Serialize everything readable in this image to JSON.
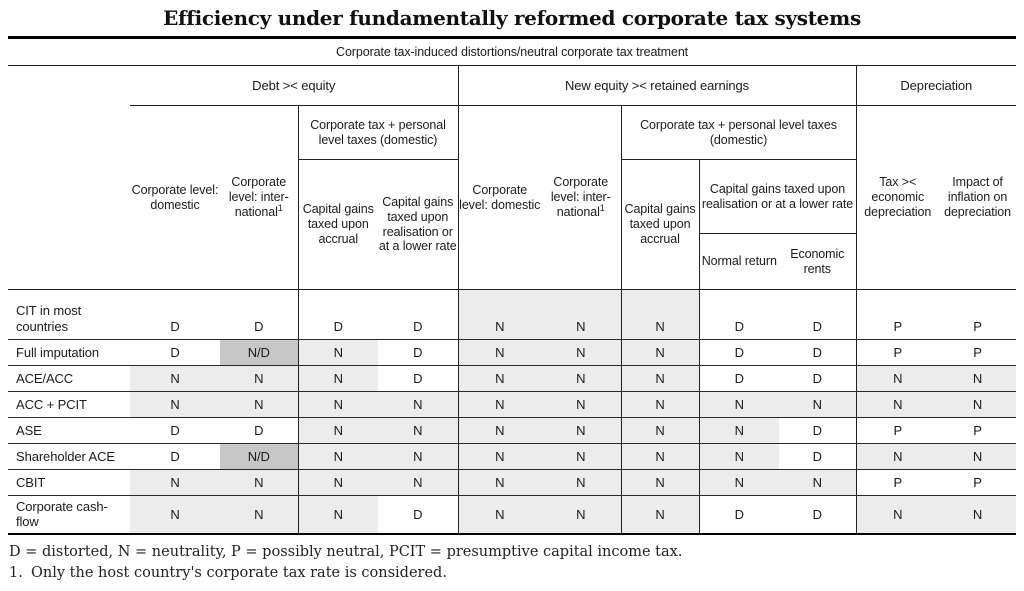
{
  "title": "Efficiency under fundamentally reformed corporate tax systems",
  "table": {
    "span_header": "Corporate tax-induced distortions/neutral corporate tax treatment",
    "columns": {
      "debt": {
        "group": "Debt >< equity",
        "corp_domestic": "Corporate level: domestic",
        "corp_international": "Corporate level: inter-national",
        "corp_international_sup": "1",
        "personal_group": "Corporate tax + personal level taxes (domestic)",
        "cg_accrual": "Capital gains taxed upon accrual",
        "cg_realisation": "Capital gains taxed upon realisation or at a lower rate"
      },
      "new_equity": {
        "group": "New equity >< retained earnings",
        "corp_domestic": "Corporate level: domestic",
        "corp_international": "Corporate level: inter-national",
        "corp_international_sup": "1",
        "personal_group": "Corporate tax + personal level taxes (domestic)",
        "cg_accrual": "Capital gains taxed upon accrual",
        "cg_realisation": "Capital gains taxed upon realisation or at a lower rate",
        "normal_return": "Normal return",
        "economic_rents": "Economic rents"
      },
      "depreciation": {
        "group": "Depreciation",
        "tax_vs_economic": "Tax >< economic depreciation",
        "inflation": "Impact of inflation on depreciation"
      }
    },
    "rows": [
      {
        "label": "CIT in most countries",
        "values": [
          "D",
          "D",
          "D",
          "D",
          "N",
          "N",
          "N",
          "D",
          "D",
          "P",
          "P"
        ],
        "shade": [
          0,
          0,
          0,
          0,
          1,
          1,
          1,
          0,
          0,
          0,
          0
        ]
      },
      {
        "label": "Full imputation",
        "values": [
          "D",
          "N/D",
          "N",
          "D",
          "N",
          "N",
          "N",
          "D",
          "D",
          "P",
          "P"
        ],
        "shade": [
          0,
          2,
          1,
          0,
          1,
          1,
          1,
          0,
          0,
          0,
          0
        ]
      },
      {
        "label": "ACE/ACC",
        "values": [
          "N",
          "N",
          "N",
          "D",
          "N",
          "N",
          "N",
          "D",
          "D",
          "N",
          "N"
        ],
        "shade": [
          1,
          1,
          1,
          0,
          1,
          1,
          1,
          0,
          0,
          1,
          1
        ]
      },
      {
        "label": "ACC + PCIT",
        "values": [
          "N",
          "N",
          "N",
          "N",
          "N",
          "N",
          "N",
          "N",
          "N",
          "N",
          "N"
        ],
        "shade": [
          1,
          1,
          1,
          1,
          1,
          1,
          1,
          1,
          1,
          1,
          1
        ]
      },
      {
        "label": "ASE",
        "values": [
          "D",
          "D",
          "N",
          "N",
          "N",
          "N",
          "N",
          "N",
          "D",
          "P",
          "P"
        ],
        "shade": [
          0,
          0,
          1,
          1,
          1,
          1,
          1,
          1,
          0,
          0,
          0
        ]
      },
      {
        "label": "Shareholder ACE",
        "values": [
          "D",
          "N/D",
          "N",
          "N",
          "N",
          "N",
          "N",
          "N",
          "D",
          "N",
          "N"
        ],
        "shade": [
          0,
          2,
          1,
          1,
          1,
          1,
          1,
          1,
          0,
          1,
          1
        ]
      },
      {
        "label": "CBIT",
        "values": [
          "N",
          "N",
          "N",
          "N",
          "N",
          "N",
          "N",
          "N",
          "N",
          "P",
          "P"
        ],
        "shade": [
          1,
          1,
          1,
          1,
          1,
          1,
          1,
          1,
          1,
          0,
          0
        ]
      },
      {
        "label": "Corporate cash-flow",
        "values": [
          "N",
          "N",
          "N",
          "D",
          "N",
          "N",
          "N",
          "D",
          "D",
          "N",
          "N"
        ],
        "shade": [
          1,
          1,
          1,
          0,
          1,
          1,
          1,
          0,
          0,
          1,
          1
        ]
      }
    ],
    "shade_colors": {
      "light": "#ececec",
      "dark": "#c7c7c7"
    },
    "legend_values": {
      "D": "distorted",
      "N": "neutrality",
      "P": "possibly neutral"
    }
  },
  "footnotes": {
    "legend": "D = distorted, N = neutrality, P = possibly neutral, PCIT = presumptive capital income tax.",
    "note1_marker": "1.",
    "note1_text": "Only the host country's corporate tax rate is considered."
  }
}
